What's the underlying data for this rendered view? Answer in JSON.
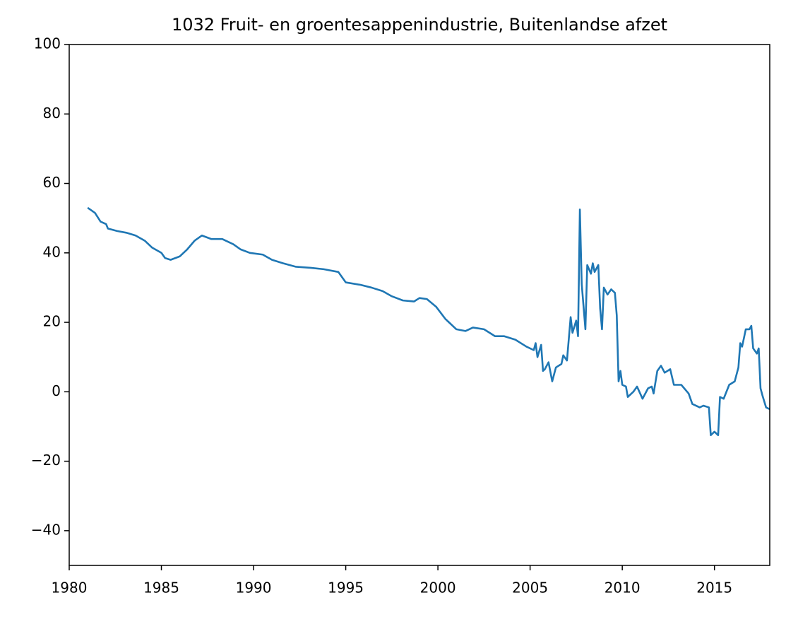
{
  "chart_data": {
    "type": "line",
    "title": "1032 Fruit- en groentesappenindustrie, Buitenlandse afzet",
    "x": [
      1981.0,
      1981.4,
      1981.7,
      1982.0,
      1982.1,
      1982.6,
      1983.1,
      1983.6,
      1984.1,
      1984.5,
      1985.0,
      1985.2,
      1985.5,
      1986.0,
      1986.4,
      1986.8,
      1987.2,
      1987.7,
      1988.3,
      1988.9,
      1989.3,
      1989.8,
      1990.5,
      1991.0,
      1991.6,
      1992.3,
      1993.1,
      1993.8,
      1994.6,
      1995.0,
      1995.8,
      1996.4,
      1997.0,
      1997.5,
      1998.1,
      1998.7,
      1999.0,
      1999.4,
      1999.9,
      2000.4,
      2001.0,
      2001.5,
      2001.9,
      2002.5,
      2003.1,
      2003.6,
      2004.2,
      2004.8,
      2005.2,
      2005.3,
      2005.4,
      2005.6,
      2005.7,
      2005.8,
      2006.0,
      2006.2,
      2006.4,
      2006.7,
      2006.8,
      2007.0,
      2007.2,
      2007.3,
      2007.5,
      2007.6,
      2007.7,
      2007.8,
      2008.0,
      2008.1,
      2008.3,
      2008.4,
      2008.5,
      2008.7,
      2008.8,
      2008.9,
      2009.0,
      2009.2,
      2009.4,
      2009.6,
      2009.7,
      2009.8,
      2009.9,
      2010.0,
      2010.2,
      2010.3,
      2010.6,
      2010.8,
      2011.1,
      2011.4,
      2011.6,
      2011.7,
      2011.9,
      2012.1,
      2012.3,
      2012.6,
      2012.8,
      2013.2,
      2013.6,
      2013.8,
      2014.2,
      2014.4,
      2014.7,
      2014.8,
      2015.0,
      2015.2,
      2015.3,
      2015.5,
      2015.8,
      2016.1,
      2016.3,
      2016.4,
      2016.5,
      2016.7,
      2016.9,
      2017.0,
      2017.1,
      2017.3,
      2017.4,
      2017.5,
      2017.6,
      2017.8,
      2018.0
    ],
    "series": [
      {
        "color": "#1f77b4",
        "values": [
          53,
          51.5,
          49,
          48.3,
          47,
          46.3,
          45.8,
          45,
          43.5,
          41.5,
          40,
          38.5,
          38,
          39,
          41,
          43.5,
          45,
          44,
          44,
          42.5,
          41,
          40,
          39.5,
          38,
          37,
          36,
          35.7,
          35.3,
          34.5,
          31.5,
          30.8,
          30,
          29,
          27.5,
          26.3,
          26,
          27,
          26.7,
          24.5,
          21,
          18,
          17.5,
          18.5,
          18,
          16,
          16,
          15,
          13,
          12,
          14,
          10,
          13.5,
          6,
          6.5,
          8.5,
          3,
          7,
          8,
          10.5,
          9,
          21.5,
          17,
          20.5,
          16,
          52.5,
          31,
          18,
          36.5,
          34,
          37,
          34.5,
          36.5,
          24,
          18,
          30,
          28,
          29.5,
          28.5,
          22,
          3,
          6,
          2,
          1.5,
          -1.5,
          0,
          1.5,
          -2,
          1,
          1.5,
          -0.5,
          6,
          7.5,
          5.5,
          6.5,
          2,
          2,
          -0.5,
          -3.5,
          -4.5,
          -4,
          -4.5,
          -12.5,
          -11.5,
          -12.5,
          -1.5,
          -2,
          2,
          3,
          7,
          14,
          13,
          18,
          18,
          19,
          12.5,
          11,
          12.5,
          1,
          -1,
          -4.5,
          -5
        ]
      }
    ],
    "xlim": [
      1980,
      2018
    ],
    "xticks": [
      1980,
      1985,
      1990,
      1995,
      2000,
      2005,
      2010,
      2015
    ],
    "ylim": [
      -50,
      100
    ],
    "yticks": [
      {
        "value": -40,
        "label": "−40"
      },
      {
        "value": -20,
        "label": "−20"
      },
      0,
      20,
      40,
      60,
      80,
      100
    ]
  }
}
